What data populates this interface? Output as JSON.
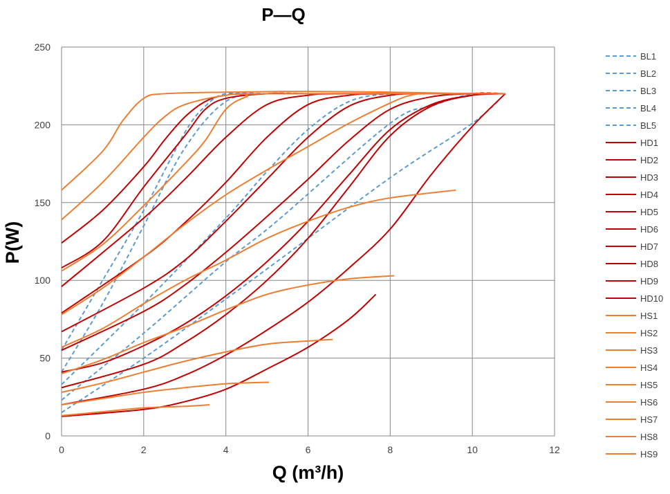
{
  "chart_data": {
    "type": "line",
    "title": "P—Q",
    "xlabel": "Q (m³/h)",
    "ylabel": "P(W)",
    "xlim": [
      0,
      12
    ],
    "ylim": [
      0,
      250
    ],
    "xticks": [
      0,
      2,
      4,
      6,
      8,
      10,
      12
    ],
    "yticks": [
      0,
      50,
      100,
      150,
      200,
      250
    ],
    "grid": true,
    "legend_position": "right",
    "series": [
      {
        "name": "BL1",
        "color": "#5B9BD5",
        "dash": true,
        "points": [
          [
            0,
            15
          ],
          [
            2,
            50
          ],
          [
            4,
            88
          ],
          [
            5.24,
            112
          ],
          [
            8,
            166
          ],
          [
            10,
            201
          ],
          [
            10.8,
            220
          ]
        ]
      },
      {
        "name": "BL2",
        "color": "#5B9BD5",
        "dash": true,
        "points": [
          [
            0,
            23
          ],
          [
            2,
            66
          ],
          [
            4,
            112
          ],
          [
            5.24,
            138
          ],
          [
            8,
            201
          ],
          [
            9,
            212
          ],
          [
            10,
            220
          ],
          [
            10.8,
            220
          ]
        ]
      },
      {
        "name": "BL3",
        "color": "#5B9BD5",
        "dash": true,
        "points": [
          [
            0,
            33
          ],
          [
            2,
            85
          ],
          [
            4,
            140
          ],
          [
            5,
            170
          ],
          [
            6,
            197
          ],
          [
            7,
            215
          ],
          [
            8,
            220
          ],
          [
            9,
            220
          ]
        ]
      },
      {
        "name": "BL4",
        "color": "#5B9BD5",
        "dash": true,
        "points": [
          [
            0,
            41
          ],
          [
            1,
            85
          ],
          [
            2,
            135
          ],
          [
            3,
            185
          ],
          [
            4,
            215
          ],
          [
            5,
            220
          ],
          [
            6,
            220
          ]
        ]
      },
      {
        "name": "BL5",
        "color": "#5B9BD5",
        "dash": true,
        "points": [
          [
            0,
            55
          ],
          [
            1,
            100
          ],
          [
            2,
            145
          ],
          [
            3,
            195
          ],
          [
            3.5,
            212
          ],
          [
            4,
            220
          ],
          [
            5,
            220
          ]
        ]
      },
      {
        "name": "HD1",
        "color": "#C00000",
        "points": [
          [
            0,
            12.5
          ],
          [
            2,
            17
          ],
          [
            3,
            22
          ],
          [
            4,
            30
          ],
          [
            5,
            43
          ],
          [
            6,
            57
          ],
          [
            7,
            75
          ],
          [
            7.65,
            91
          ]
        ]
      },
      {
        "name": "HD2",
        "color": "#C00000",
        "points": [
          [
            0,
            20
          ],
          [
            2,
            30
          ],
          [
            3,
            39
          ],
          [
            4,
            52
          ],
          [
            5,
            68
          ],
          [
            6,
            86
          ],
          [
            7,
            108
          ],
          [
            8,
            133
          ],
          [
            9,
            168
          ],
          [
            10,
            199
          ],
          [
            10.8,
            220
          ]
        ]
      },
      {
        "name": "HD3",
        "color": "#C00000",
        "points": [
          [
            0,
            31
          ],
          [
            2,
            46
          ],
          [
            3,
            60
          ],
          [
            4,
            78
          ],
          [
            5,
            100
          ],
          [
            6,
            127
          ],
          [
            7,
            160
          ],
          [
            8,
            193
          ],
          [
            9,
            212
          ],
          [
            10,
            219
          ],
          [
            10.8,
            220
          ]
        ]
      },
      {
        "name": "HD4",
        "color": "#C00000",
        "points": [
          [
            0,
            41
          ],
          [
            1,
            47
          ],
          [
            2,
            58
          ],
          [
            3,
            72
          ],
          [
            4,
            90
          ],
          [
            5,
            112
          ],
          [
            6,
            138
          ],
          [
            7,
            168
          ],
          [
            8,
            197
          ],
          [
            9,
            213
          ],
          [
            10,
            219
          ],
          [
            10.8,
            220
          ]
        ]
      },
      {
        "name": "HD5",
        "color": "#C00000",
        "points": [
          [
            0,
            55
          ],
          [
            2,
            80
          ],
          [
            3,
            97
          ],
          [
            4,
            118
          ],
          [
            5,
            141
          ],
          [
            6,
            165
          ],
          [
            7,
            190
          ],
          [
            8,
            210
          ],
          [
            9,
            218
          ],
          [
            10,
            220
          ],
          [
            10.8,
            220
          ]
        ]
      },
      {
        "name": "HD6",
        "color": "#C00000",
        "points": [
          [
            0,
            67
          ],
          [
            2,
            95
          ],
          [
            3,
            113
          ],
          [
            4,
            138
          ],
          [
            5,
            165
          ],
          [
            6,
            192
          ],
          [
            7,
            212
          ],
          [
            8,
            219
          ],
          [
            9,
            220
          ],
          [
            10.8,
            220
          ]
        ]
      },
      {
        "name": "HD7",
        "color": "#C00000",
        "points": [
          [
            0,
            79
          ],
          [
            2,
            115
          ],
          [
            3,
            137
          ],
          [
            4,
            163
          ],
          [
            5,
            192
          ],
          [
            6,
            213
          ],
          [
            7,
            219
          ],
          [
            8,
            220
          ],
          [
            10.8,
            220
          ]
        ]
      },
      {
        "name": "HD8",
        "color": "#C00000",
        "points": [
          [
            0,
            96
          ],
          [
            2,
            140
          ],
          [
            3,
            165
          ],
          [
            4,
            192
          ],
          [
            5,
            213
          ],
          [
            6,
            219
          ],
          [
            7,
            220
          ],
          [
            10.8,
            220
          ]
        ]
      },
      {
        "name": "HD9",
        "color": "#C00000",
        "points": [
          [
            0,
            108
          ],
          [
            1,
            125
          ],
          [
            2,
            160
          ],
          [
            3,
            193
          ],
          [
            3.5,
            210
          ],
          [
            4,
            217
          ],
          [
            5,
            220
          ],
          [
            6,
            220
          ],
          [
            10.8,
            220
          ]
        ]
      },
      {
        "name": "HD10",
        "color": "#C00000",
        "points": [
          [
            0,
            124
          ],
          [
            1,
            145
          ],
          [
            2,
            173
          ],
          [
            2.5,
            190
          ],
          [
            3,
            205
          ],
          [
            3.5,
            215
          ],
          [
            4,
            219
          ],
          [
            5,
            220
          ],
          [
            10.8,
            220
          ]
        ]
      },
      {
        "name": "HS1",
        "color": "#ED7D31",
        "points": [
          [
            0,
            13
          ],
          [
            1,
            15.5
          ],
          [
            2,
            18
          ],
          [
            3,
            19
          ],
          [
            3.6,
            20
          ]
        ]
      },
      {
        "name": "HS2",
        "color": "#ED7D31",
        "points": [
          [
            0,
            20
          ],
          [
            1,
            24
          ],
          [
            2,
            28
          ],
          [
            3,
            31
          ],
          [
            4,
            33.5
          ],
          [
            5.05,
            34.5
          ]
        ]
      },
      {
        "name": "HS3",
        "color": "#ED7D31",
        "points": [
          [
            0,
            28
          ],
          [
            1,
            34
          ],
          [
            2,
            41
          ],
          [
            3,
            48
          ],
          [
            4,
            54
          ],
          [
            5,
            59
          ],
          [
            6,
            61
          ],
          [
            6.6,
            62
          ]
        ]
      },
      {
        "name": "HS4",
        "color": "#ED7D31",
        "points": [
          [
            0,
            40
          ],
          [
            1,
            49
          ],
          [
            2,
            60
          ],
          [
            3,
            70
          ],
          [
            4,
            81
          ],
          [
            5,
            91
          ],
          [
            6,
            97
          ],
          [
            7,
            101
          ],
          [
            8.1,
            103
          ]
        ]
      },
      {
        "name": "HS5",
        "color": "#ED7D31",
        "points": [
          [
            0,
            57
          ],
          [
            1,
            69
          ],
          [
            2,
            85
          ],
          [
            3,
            100
          ],
          [
            4,
            113
          ],
          [
            5,
            127
          ],
          [
            6,
            138
          ],
          [
            7,
            147
          ],
          [
            8,
            153
          ],
          [
            9.6,
            158
          ]
        ]
      },
      {
        "name": "HS6",
        "color": "#ED7D31",
        "points": [
          [
            0,
            78
          ],
          [
            1,
            95
          ],
          [
            2,
            115
          ],
          [
            3,
            136
          ],
          [
            4,
            155
          ],
          [
            5,
            171
          ],
          [
            6,
            186
          ],
          [
            7,
            201
          ],
          [
            8,
            214
          ],
          [
            8.5,
            219
          ],
          [
            9,
            220
          ],
          [
            10.8,
            220
          ]
        ]
      },
      {
        "name": "HS7",
        "color": "#ED7D31",
        "points": [
          [
            0,
            106
          ],
          [
            1,
            123
          ],
          [
            2,
            148
          ],
          [
            3,
            175
          ],
          [
            3.5,
            190
          ],
          [
            4,
            210
          ],
          [
            4.5,
            218
          ],
          [
            5,
            220
          ],
          [
            10,
            220
          ]
        ]
      },
      {
        "name": "HS8",
        "color": "#ED7D31",
        "points": [
          [
            0,
            139
          ],
          [
            1,
            163
          ],
          [
            2,
            192
          ],
          [
            2.5,
            205
          ],
          [
            3,
            213
          ],
          [
            4,
            219
          ],
          [
            5,
            220
          ],
          [
            10,
            220
          ]
        ]
      },
      {
        "name": "HS9",
        "color": "#ED7D31",
        "points": [
          [
            0,
            158
          ],
          [
            1,
            183
          ],
          [
            1.5,
            203
          ],
          [
            2,
            217
          ],
          [
            2.5,
            220
          ],
          [
            4,
            221
          ],
          [
            6,
            221.5
          ],
          [
            8,
            221
          ],
          [
            10,
            220
          ]
        ]
      }
    ]
  }
}
